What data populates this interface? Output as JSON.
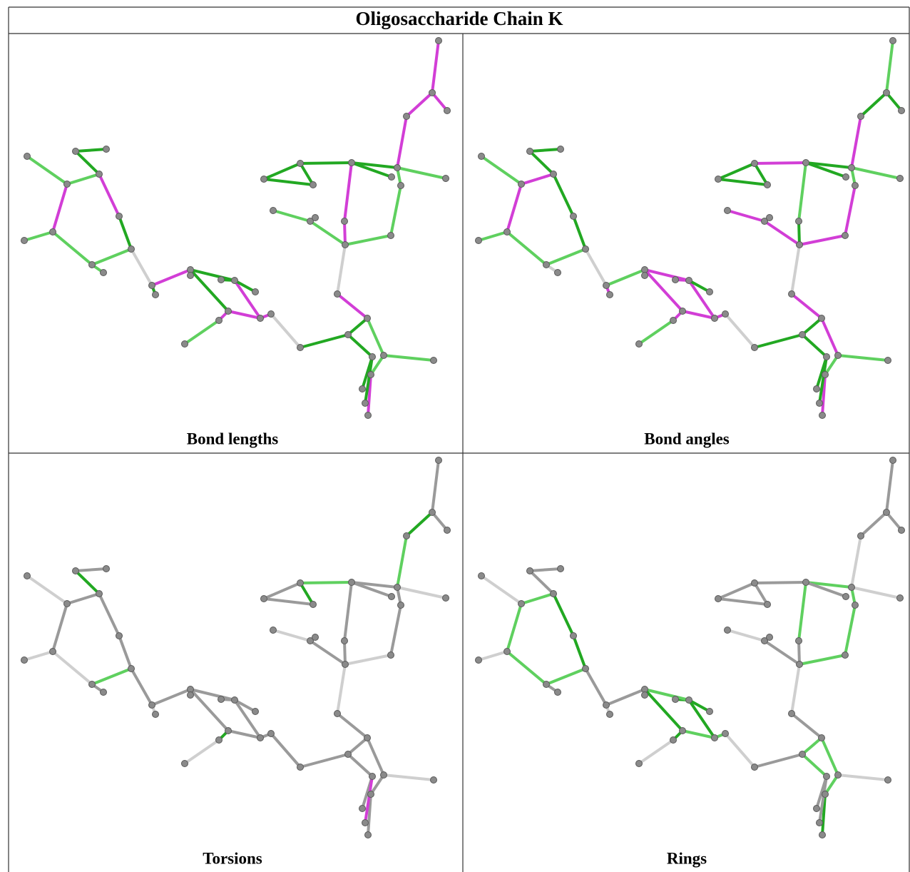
{
  "title": "Oligosaccharide Chain K",
  "panels": [
    {
      "caption": "Bond lengths"
    },
    {
      "caption": "Bond angles"
    },
    {
      "caption": "Torsions"
    },
    {
      "caption": "Rings"
    }
  ]
}
